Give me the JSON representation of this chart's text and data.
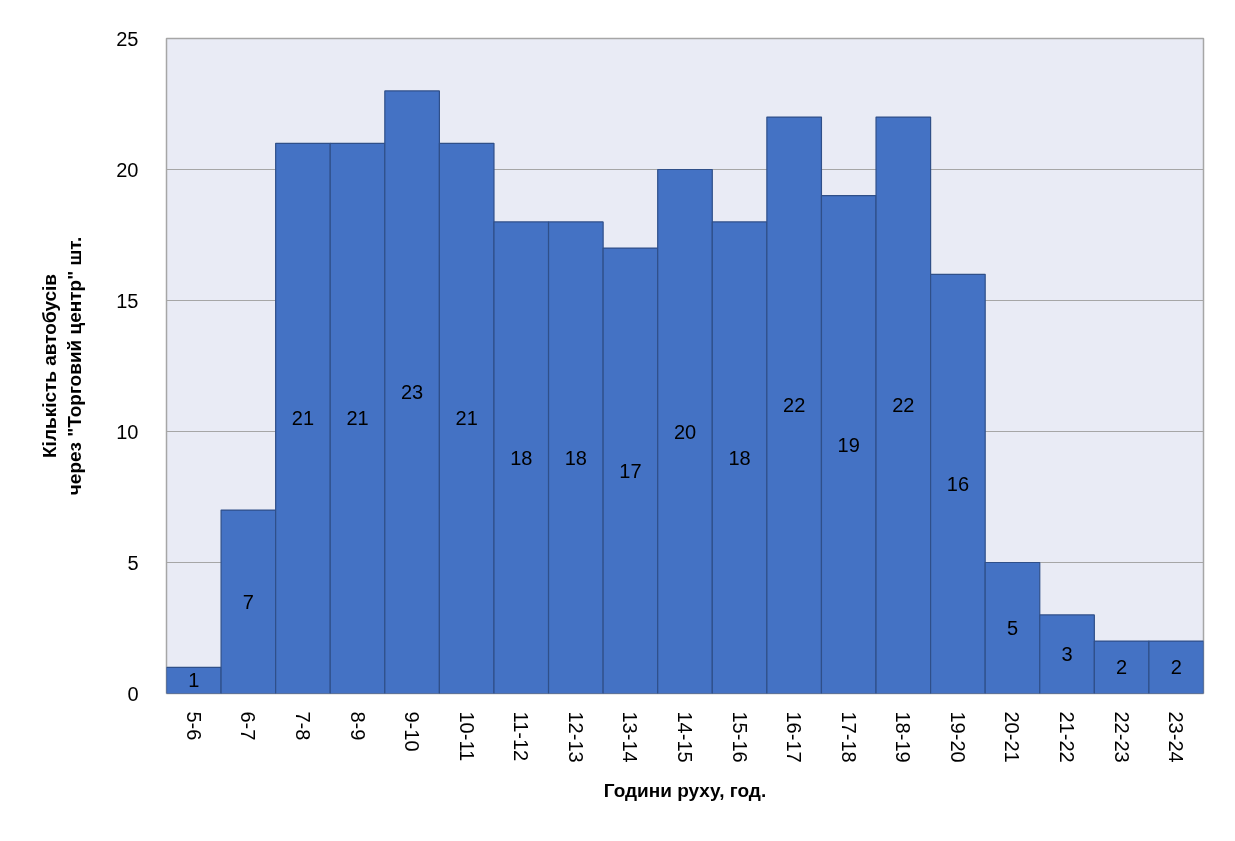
{
  "chart_data": {
    "type": "bar",
    "xlabel": "Години руху, год.",
    "ylabel": "Кількість автобусів\nчерез \"Торговий центр\" шт.",
    "categories": [
      "5-6",
      "6-7",
      "7-8",
      "8-9",
      "9-10",
      "10-11",
      "11-12",
      "12-13",
      "13-14",
      "14-15",
      "15-16",
      "16-17",
      "17-18",
      "18-19",
      "19-20",
      "20-21",
      "21-22",
      "22-23",
      "23-24"
    ],
    "values": [
      1,
      7,
      21,
      21,
      23,
      21,
      18,
      18,
      17,
      20,
      18,
      22,
      19,
      22,
      16,
      5,
      3,
      2,
      2
    ],
    "color": "#4472c4",
    "ylim": [
      0,
      25
    ],
    "yticks": [
      0,
      5,
      10,
      15,
      20,
      25
    ],
    "grid": "y",
    "data_labels": true
  }
}
